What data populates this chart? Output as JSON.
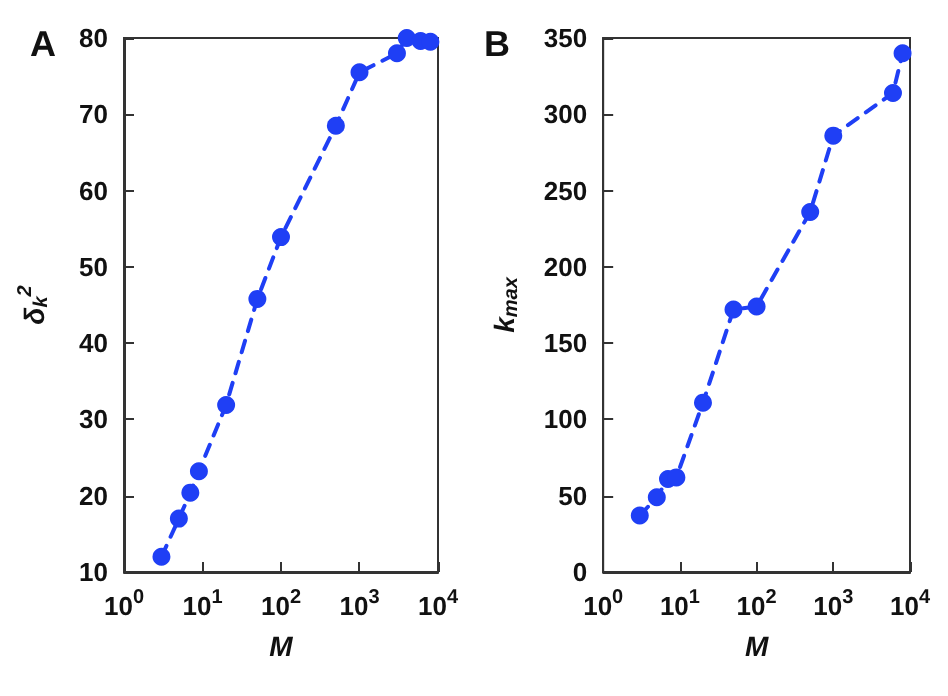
{
  "chart_data": [
    {
      "type": "line",
      "title": "A",
      "xlabel": "M",
      "ylabel": "δ$_{k}$$^{2}$",
      "log": "x",
      "xlim": [
        1,
        10000
      ],
      "xticks": [
        {
          "value": 1,
          "label": "10$^{0}$"
        },
        {
          "value": 10,
          "label": "10$^{1}$"
        },
        {
          "value": 100,
          "label": "10$^{2}$"
        },
        {
          "value": 1000,
          "label": "10$^{3}$"
        },
        {
          "value": 10000,
          "label": "10$^{4}$"
        }
      ],
      "ylim": [
        10,
        80
      ],
      "yticks": [
        10,
        20,
        30,
        40,
        50,
        60,
        70,
        80
      ],
      "grid": false,
      "marker": "circle",
      "line_style": "dashed",
      "series": [
        {
          "color": "#1f3ff5",
          "x": [
            3,
            5,
            7,
            9,
            20,
            50,
            100,
            500,
            1000,
            3000,
            4000,
            6000,
            8000
          ],
          "values": [
            12,
            17,
            20.4,
            23.2,
            31.9,
            45.8,
            53.9,
            68.5,
            75.5,
            78,
            80,
            79.6,
            79.5
          ]
        }
      ]
    },
    {
      "type": "line",
      "title": "B",
      "xlabel": "M",
      "ylabel": "k$_{max}$",
      "log": "x",
      "xlim": [
        1,
        10000
      ],
      "xticks": [
        {
          "value": 1,
          "label": "10$^{0}$"
        },
        {
          "value": 10,
          "label": "10$^{1}$"
        },
        {
          "value": 100,
          "label": "10$^{2}$"
        },
        {
          "value": 1000,
          "label": "10$^{3}$"
        },
        {
          "value": 10000,
          "label": "10$^{4}$"
        }
      ],
      "ylim": [
        0,
        350
      ],
      "yticks": [
        0,
        50,
        100,
        150,
        200,
        250,
        300,
        350
      ],
      "grid": false,
      "marker": "circle",
      "line_style": "dashed",
      "series": [
        {
          "color": "#1f3ff5",
          "x": [
            3,
            5,
            7,
            9,
            20,
            50,
            100,
            500,
            1000,
            6000,
            8000
          ],
          "values": [
            37,
            49,
            61,
            62,
            111,
            172,
            174,
            236,
            286,
            314,
            340
          ]
        }
      ]
    }
  ]
}
